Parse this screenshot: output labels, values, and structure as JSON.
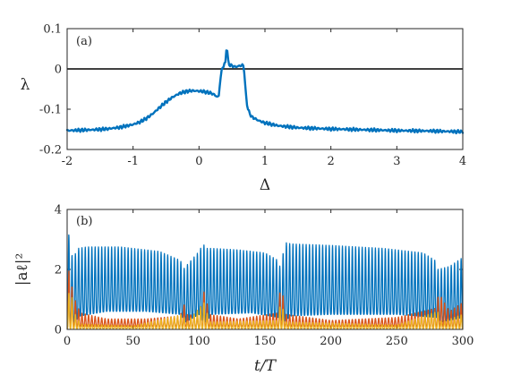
{
  "chart_data": [
    {
      "type": "line",
      "panel_label": "(a)",
      "xlabel": "Δ",
      "ylabel": "λ",
      "xlim": [
        -2,
        4
      ],
      "ylim": [
        -0.2,
        0.1
      ],
      "xticks": [
        -2,
        -1,
        0,
        1,
        2,
        3,
        4
      ],
      "xtick_labels": [
        "-2",
        "-1",
        "0",
        "1",
        "2",
        "3",
        "4"
      ],
      "yticks": [
        -0.2,
        -0.1,
        0,
        0.1
      ],
      "ytick_labels": [
        "-0.2",
        "-0.1",
        "0",
        "0.1"
      ],
      "reference_line_y": 0,
      "grid": false,
      "series": [
        {
          "color": "#0072BD",
          "x": [
            -2.0,
            -1.8,
            -1.6,
            -1.4,
            -1.2,
            -1.0,
            -0.9,
            -0.8,
            -0.7,
            -0.6,
            -0.5,
            -0.4,
            -0.3,
            -0.2,
            -0.1,
            0.0,
            0.1,
            0.2,
            0.25,
            0.28,
            0.3,
            0.32,
            0.35,
            0.38,
            0.4,
            0.42,
            0.44,
            0.46,
            0.5,
            0.55,
            0.6,
            0.65,
            0.68,
            0.7,
            0.72,
            0.75,
            0.8,
            0.9,
            1.0,
            1.2,
            1.5,
            2.0,
            2.5,
            3.0,
            3.5,
            4.0
          ],
          "y": [
            -0.153,
            -0.152,
            -0.151,
            -0.149,
            -0.145,
            -0.138,
            -0.132,
            -0.123,
            -0.111,
            -0.096,
            -0.082,
            -0.07,
            -0.061,
            -0.056,
            -0.054,
            -0.055,
            -0.057,
            -0.061,
            -0.066,
            -0.07,
            -0.067,
            -0.03,
            0.002,
            0.01,
            0.015,
            0.064,
            0.02,
            0.01,
            0.008,
            0.005,
            0.007,
            0.009,
            0.008,
            -0.04,
            -0.08,
            -0.105,
            -0.119,
            -0.128,
            -0.134,
            -0.141,
            -0.146,
            -0.149,
            -0.151,
            -0.153,
            -0.154,
            -0.156
          ]
        }
      ]
    },
    {
      "type": "line",
      "panel_label": "(b)",
      "xlabel": "t/T",
      "ylabel": "|aℓ|²",
      "xlim": [
        0,
        300
      ],
      "ylim": [
        0,
        4
      ],
      "xticks": [
        0,
        50,
        100,
        150,
        200,
        250,
        300
      ],
      "xtick_labels": [
        "0",
        "50",
        "100",
        "150",
        "200",
        "250",
        "300"
      ],
      "yticks": [
        0,
        2,
        4
      ],
      "ytick_labels": [
        "0",
        "2",
        "4"
      ],
      "grid": false,
      "series": [
        {
          "color": "#0072BD",
          "peak_envelope_x": [
            0,
            2,
            4,
            8,
            15,
            40,
            70,
            86,
            88,
            92,
            100,
            103,
            106,
            110,
            130,
            150,
            160,
            162,
            165,
            170,
            200,
            240,
            270,
            279,
            281,
            290,
            300
          ],
          "peak_envelope_y": [
            2.4,
            3.6,
            2.3,
            2.7,
            2.75,
            2.75,
            2.6,
            2.3,
            2.0,
            2.2,
            2.6,
            2.85,
            2.7,
            2.7,
            2.65,
            2.55,
            2.3,
            2.0,
            2.9,
            2.85,
            2.8,
            2.7,
            2.55,
            2.3,
            2.0,
            2.1,
            2.4
          ],
          "trough_envelope_x": [
            0,
            4,
            10,
            30,
            60,
            86,
            90,
            100,
            104,
            110,
            140,
            160,
            164,
            170,
            200,
            250,
            280,
            284,
            300
          ],
          "trough_envelope_y": [
            0.3,
            0.2,
            0.45,
            0.6,
            0.6,
            0.5,
            0.25,
            0.5,
            0.2,
            0.5,
            0.55,
            0.4,
            0.25,
            0.45,
            0.5,
            0.5,
            0.4,
            0.25,
            0.4
          ],
          "oscillation_period": 2.5
        },
        {
          "color": "#D95319",
          "peak_envelope_x": [
            0,
            2,
            4,
            10,
            30,
            60,
            86,
            88,
            90,
            100,
            104,
            108,
            130,
            160,
            162,
            166,
            200,
            250,
            279,
            282,
            290,
            300
          ],
          "peak_envelope_y": [
            0.6,
            2.7,
            1.2,
            0.55,
            0.35,
            0.35,
            0.45,
            1.0,
            0.5,
            0.45,
            1.3,
            0.5,
            0.35,
            0.55,
            1.6,
            0.5,
            0.3,
            0.4,
            0.7,
            1.2,
            0.6,
            0.9
          ],
          "baseline": 0.1,
          "oscillation_period": 2.5
        },
        {
          "color": "#EDB120",
          "peak_envelope_x": [
            0,
            2,
            5,
            10,
            50,
            88,
            90,
            104,
            108,
            160,
            162,
            166,
            250,
            281,
            284,
            300
          ],
          "peak_envelope_y": [
            0.3,
            1.7,
            0.6,
            0.18,
            0.12,
            0.5,
            0.2,
            0.9,
            0.25,
            0.3,
            1.0,
            0.25,
            0.15,
            0.6,
            0.25,
            0.5
          ],
          "baseline": 0.03,
          "oscillation_period": 2.5
        }
      ]
    }
  ]
}
